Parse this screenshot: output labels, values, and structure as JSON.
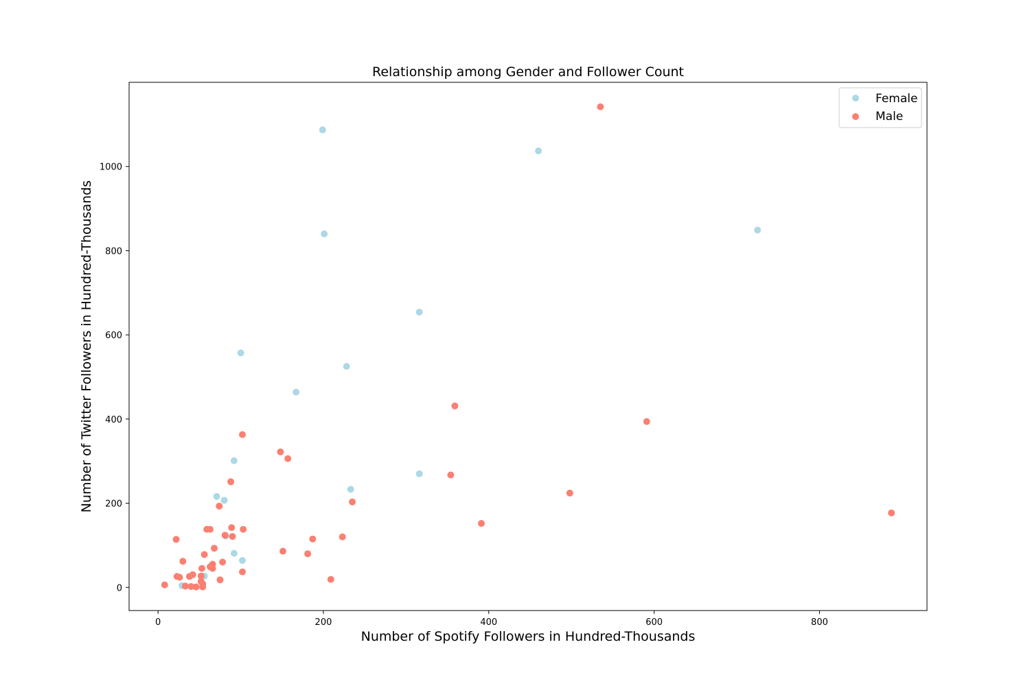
{
  "chart_data": {
    "type": "scatter",
    "title": "Relationship among Gender and Follower Count",
    "xlabel": "Number of Spotify Followers in Hundred-Thousands",
    "ylabel": "Number of Twitter Followers in Hundred-Thousands",
    "xlim": [
      -35,
      930
    ],
    "ylim": [
      -55,
      1200
    ],
    "xticks": [
      0,
      200,
      400,
      600,
      800
    ],
    "yticks": [
      0,
      200,
      400,
      600,
      800,
      1000
    ],
    "grid": false,
    "legend": "top-right",
    "series": [
      {
        "name": "Female",
        "color": "#add8e6",
        "points": [
          [
            199,
            1087
          ],
          [
            460,
            1037
          ],
          [
            201,
            840
          ],
          [
            725,
            849
          ],
          [
            316,
            654
          ],
          [
            100,
            557
          ],
          [
            228,
            525
          ],
          [
            167,
            464
          ],
          [
            92,
            301
          ],
          [
            316,
            270
          ],
          [
            233,
            233
          ],
          [
            71,
            216
          ],
          [
            80,
            207
          ],
          [
            82,
            122
          ],
          [
            92,
            81
          ],
          [
            102,
            64
          ],
          [
            56,
            27
          ],
          [
            29,
            4
          ]
        ]
      },
      {
        "name": "Male",
        "color": "#fa8072",
        "points": [
          [
            535,
            1142
          ],
          [
            359,
            431
          ],
          [
            591,
            394
          ],
          [
            102,
            363
          ],
          [
            148,
            322
          ],
          [
            157,
            306
          ],
          [
            354,
            267
          ],
          [
            88,
            251
          ],
          [
            498,
            224
          ],
          [
            235,
            203
          ],
          [
            74,
            193
          ],
          [
            887,
            177
          ],
          [
            391,
            152
          ],
          [
            89,
            142
          ],
          [
            103,
            138
          ],
          [
            59,
            138
          ],
          [
            63,
            138
          ],
          [
            81,
            124
          ],
          [
            90,
            121
          ],
          [
            223,
            120
          ],
          [
            187,
            115
          ],
          [
            22,
            114
          ],
          [
            68,
            93
          ],
          [
            151,
            86
          ],
          [
            56,
            78
          ],
          [
            181,
            80
          ],
          [
            30,
            62
          ],
          [
            78,
            60
          ],
          [
            66,
            55
          ],
          [
            63,
            49
          ],
          [
            66,
            45
          ],
          [
            53,
            45
          ],
          [
            102,
            37
          ],
          [
            42,
            30
          ],
          [
            38,
            26
          ],
          [
            23,
            26
          ],
          [
            26,
            24
          ],
          [
            52,
            27
          ],
          [
            75,
            18
          ],
          [
            209,
            19
          ],
          [
            52,
            14
          ],
          [
            54,
            8
          ],
          [
            8,
            6
          ],
          [
            33,
            3
          ],
          [
            40,
            2
          ],
          [
            46,
            1
          ],
          [
            54,
            1
          ]
        ]
      }
    ]
  }
}
